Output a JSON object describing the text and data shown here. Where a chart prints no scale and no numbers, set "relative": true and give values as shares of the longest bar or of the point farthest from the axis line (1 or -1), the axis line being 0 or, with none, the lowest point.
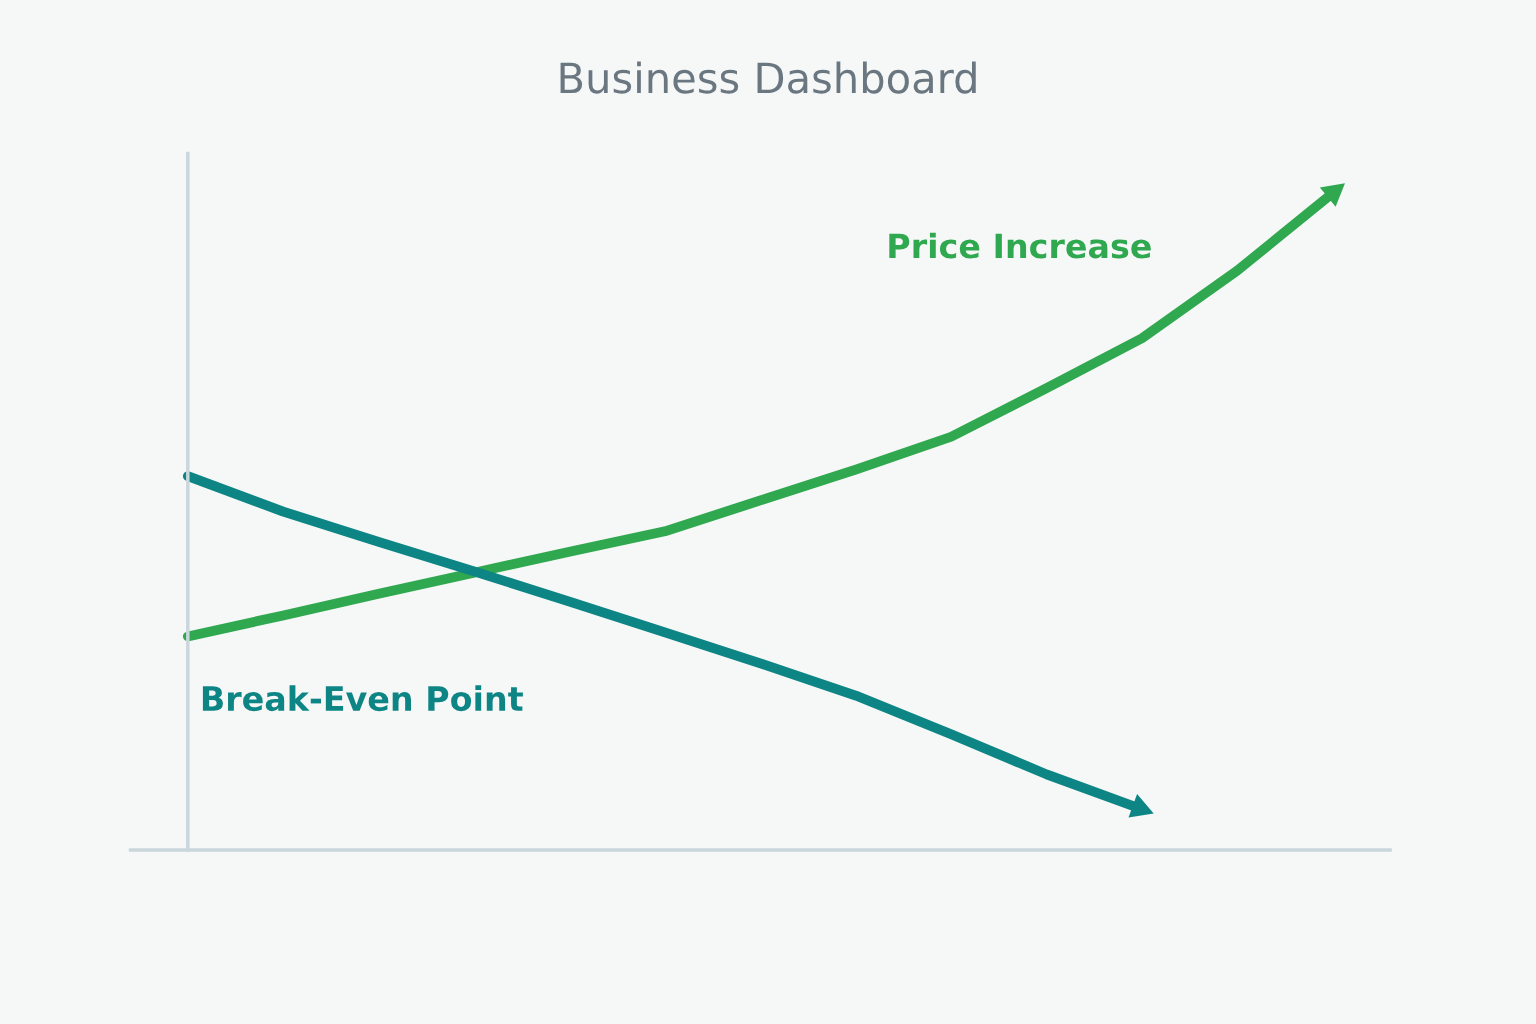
{
  "chart_data": {
    "type": "line",
    "title": "Business Dashboard",
    "relative": true,
    "categories": [
      null,
      null,
      null,
      null,
      null,
      null,
      null,
      null,
      null,
      null,
      null,
      null,
      null
    ],
    "series": [
      {
        "name": "Price Increase",
        "color": "#2fa84f",
        "values": [
          0.325,
          0.357,
          0.39,
          0.422,
          0.454,
          0.485,
          0.532,
          0.579,
          0.629,
          0.703,
          0.779,
          0.882,
          1
        ]
      },
      {
        "name": "Break-Even Point",
        "color": "#0e8585",
        "values": [
          0.569,
          0.515,
          0.469,
          0.424,
          0.378,
          0.331,
          0.284,
          0.235,
          0.176,
          0.115,
          0.062,
          null,
          null
        ]
      }
    ],
    "line_style": "solid",
    "legend": false
  }
}
